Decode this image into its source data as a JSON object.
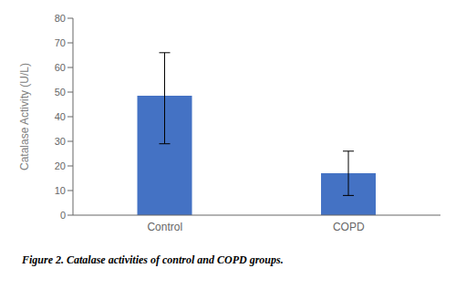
{
  "chart_data": {
    "type": "bar",
    "title": "Figure 2. Catalase activities of control and COPD groups.",
    "categories": [
      "Control",
      "COPD"
    ],
    "values": [
      48.5,
      17.0
    ],
    "errors_lower": [
      19.5,
      9.0
    ],
    "errors_upper": [
      17.5,
      9.0
    ],
    "color": "#4472C4",
    "ylabel": "Catalase Activity (U/L)",
    "ylim": [
      0,
      80
    ],
    "yticks": [
      0,
      10,
      20,
      30,
      40,
      50,
      60,
      70,
      80
    ],
    "grid": false
  }
}
